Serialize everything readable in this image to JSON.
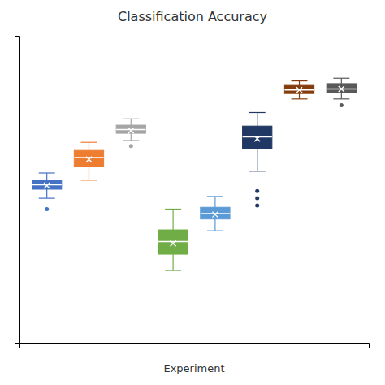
{
  "chart_data": {
    "type": "box",
    "title": "Classification Accuracy",
    "xlabel": "Experiment",
    "categories": [
      null,
      null,
      null,
      null,
      null,
      null,
      null,
      null
    ],
    "boxes": [
      {
        "color": "#4472c4",
        "whislo": 0.68,
        "q1": 0.69,
        "med": 0.695,
        "mean": 0.694,
        "q3": 0.7,
        "whishi": 0.708,
        "fliers": [
          0.668
        ]
      },
      {
        "color": "#ed7d31",
        "whislo": 0.7,
        "q1": 0.715,
        "med": 0.725,
        "mean": 0.723,
        "q3": 0.733,
        "whishi": 0.742,
        "fliers": []
      },
      {
        "color": "#a5a5a5",
        "whislo": 0.744,
        "q1": 0.752,
        "med": 0.756,
        "mean": 0.755,
        "q3": 0.761,
        "whishi": 0.768,
        "fliers": [
          0.738
        ]
      },
      {
        "color": "#70ad47",
        "whislo": 0.6,
        "q1": 0.618,
        "med": 0.632,
        "mean": 0.63,
        "q3": 0.645,
        "whishi": 0.668,
        "fliers": []
      },
      {
        "color": "#5b9bd5",
        "whislo": 0.644,
        "q1": 0.657,
        "med": 0.663,
        "mean": 0.662,
        "q3": 0.67,
        "whishi": 0.682,
        "fliers": []
      },
      {
        "color": "#1f3864",
        "whislo": 0.71,
        "q1": 0.735,
        "med": 0.748,
        "mean": 0.746,
        "q3": 0.76,
        "whishi": 0.775,
        "fliers": [
          0.672,
          0.68,
          0.688
        ]
      },
      {
        "color": "#843c0c",
        "whislo": 0.79,
        "q1": 0.796,
        "med": 0.8,
        "mean": 0.8,
        "q3": 0.805,
        "whishi": 0.81,
        "fliers": []
      },
      {
        "color": "#595959",
        "whislo": 0.79,
        "q1": 0.797,
        "med": 0.801,
        "mean": 0.801,
        "q3": 0.807,
        "whishi": 0.813,
        "fliers": [
          0.783
        ]
      }
    ],
    "ylim": [
      0.52,
      0.86
    ],
    "grid": false,
    "tick_labels": false
  }
}
